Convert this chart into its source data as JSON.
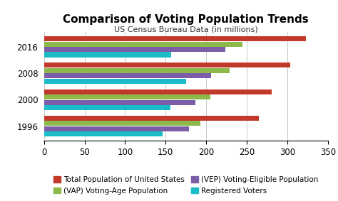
{
  "title": "Comparison of Voting Population Trends",
  "subtitle": "US Census Bureau Data (in millions)",
  "years": [
    "1996",
    "2000",
    "2008",
    "2016"
  ],
  "series": {
    "Total Population of United States": [
      265,
      281,
      304,
      323
    ],
    "(VAP) Voting-Age Population": [
      193,
      205,
      229,
      245
    ],
    "(VEP) Voting-Eligible Population": [
      179,
      187,
      206,
      224
    ],
    "Registered Voters": [
      146,
      156,
      175,
      157
    ]
  },
  "colors": {
    "Total Population of United States": "#C0392B",
    "(VAP) Voting-Age Population": "#8DB84A",
    "(VEP) Voting-Eligible Population": "#7B5EA7",
    "Registered Voters": "#1ABCC8"
  },
  "xlim": [
    0,
    350
  ],
  "xticks": [
    0,
    50,
    100,
    150,
    200,
    250,
    300,
    350
  ],
  "background_color": "#FFFFFF",
  "title_fontsize": 11,
  "subtitle_fontsize": 8,
  "legend_fontsize": 7.5,
  "tick_fontsize": 8.5
}
